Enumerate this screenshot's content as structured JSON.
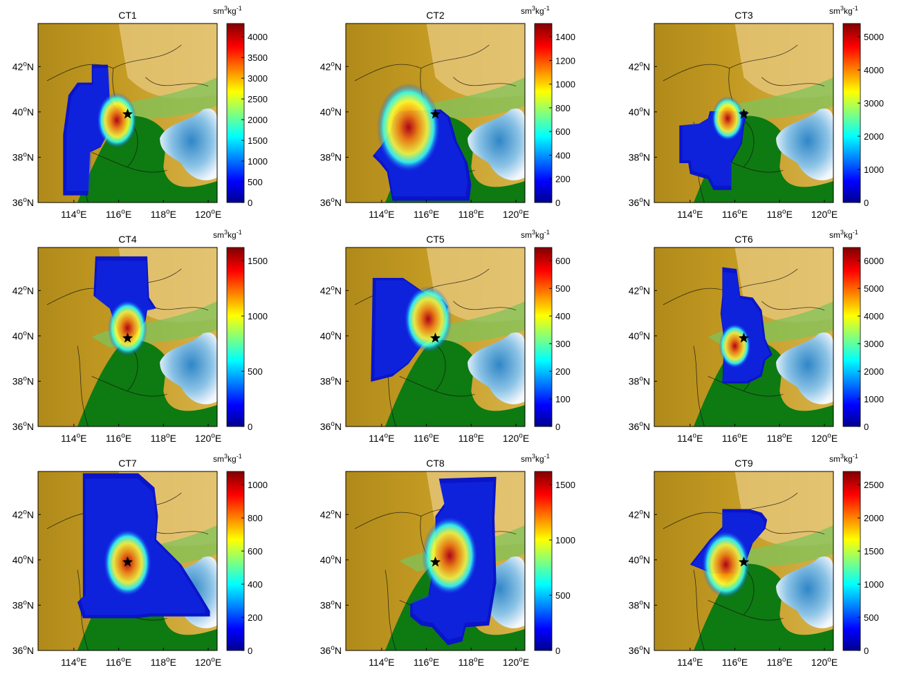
{
  "figure": {
    "units": "sm³kg⁻¹",
    "unit_base": "sm",
    "unit_exp": "3",
    "unit_mid": "kg",
    "unit_exp2": "-1",
    "x_ticks": [
      "114",
      "116",
      "118",
      "120"
    ],
    "y_ticks": [
      "42",
      "40",
      "38",
      "36"
    ],
    "x_suffix": "E",
    "y_suffix": "N",
    "deg": "o",
    "site_marker": "star",
    "colormap": "jet",
    "background": "terrain elevation (green lowland to orange/white mountains), blue Bohai Sea"
  },
  "panels": [
    {
      "title": "CT1",
      "cbar_ticks": [
        "0",
        "500",
        "1000",
        "1500",
        "2000",
        "2500",
        "3000",
        "3500",
        "4000"
      ]
    },
    {
      "title": "CT2",
      "cbar_ticks": [
        "0",
        "200",
        "400",
        "600",
        "800",
        "1000",
        "1200",
        "1400"
      ]
    },
    {
      "title": "CT3",
      "cbar_ticks": [
        "0",
        "1000",
        "2000",
        "3000",
        "4000",
        "5000"
      ]
    },
    {
      "title": "CT4",
      "cbar_ticks": [
        "0",
        "500",
        "1000",
        "1500"
      ]
    },
    {
      "title": "CT5",
      "cbar_ticks": [
        "0",
        "100",
        "200",
        "300",
        "400",
        "500",
        "600"
      ]
    },
    {
      "title": "CT6",
      "cbar_ticks": [
        "0",
        "1000",
        "2000",
        "3000",
        "4000",
        "5000",
        "6000"
      ]
    },
    {
      "title": "CT7",
      "cbar_ticks": [
        "0",
        "200",
        "400",
        "600",
        "800",
        "1000"
      ]
    },
    {
      "title": "CT8",
      "cbar_ticks": [
        "0",
        "500",
        "1000",
        "1500"
      ]
    },
    {
      "title": "CT9",
      "cbar_ticks": [
        "0",
        "500",
        "1000",
        "1500",
        "2000",
        "2500"
      ]
    }
  ]
}
